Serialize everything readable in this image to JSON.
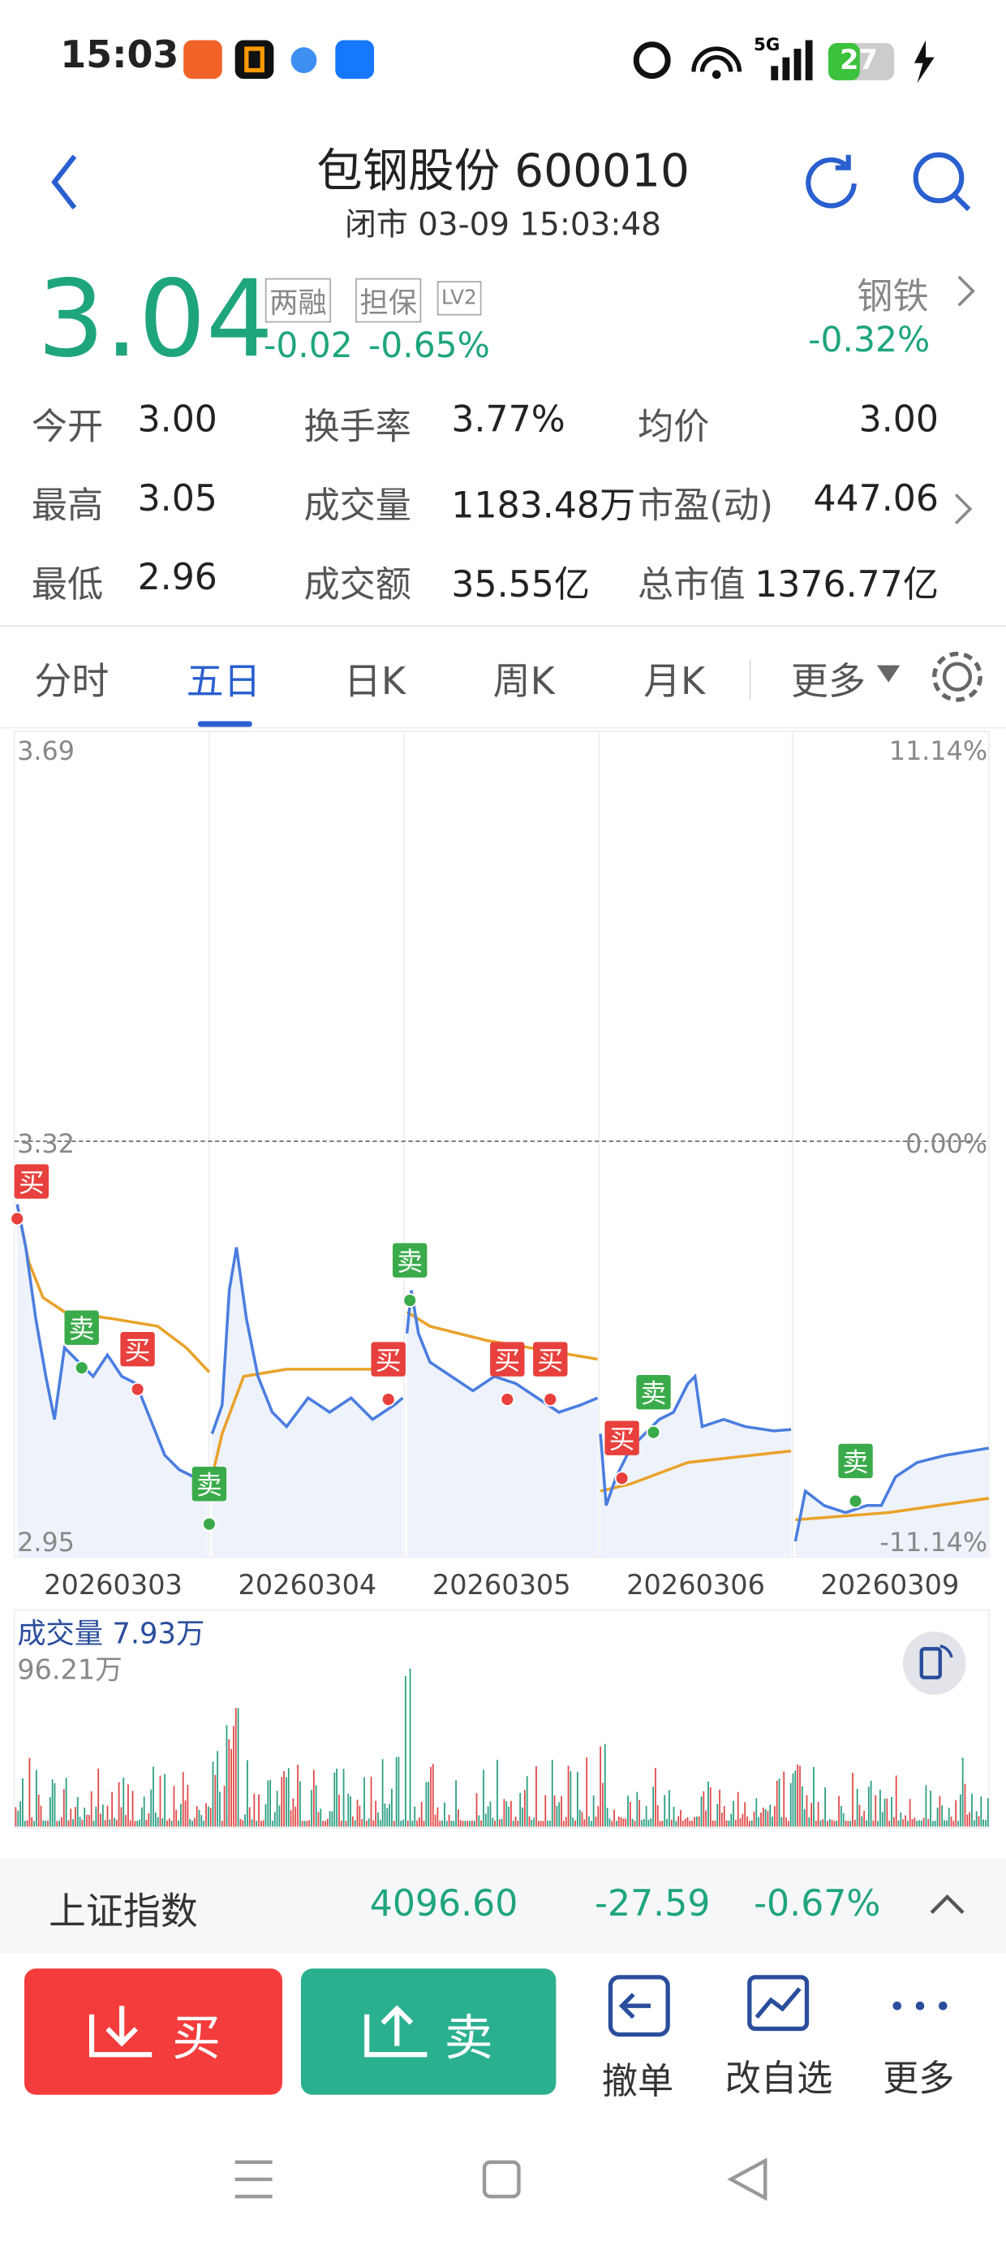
{
  "status_bar": {
    "time": "15:03",
    "network": "5G",
    "battery": "27"
  },
  "header": {
    "title": "包钢股份 600010",
    "subtitle": "闭市 03-09 15:03:48"
  },
  "quote": {
    "price": "3.04",
    "tags": [
      "两融",
      "担保",
      "LV2"
    ],
    "change": "-0.02",
    "change_pct": "-0.65%",
    "sector": "钢铁",
    "sector_change": "-0.32%"
  },
  "stats": [
    [
      "今开",
      "3.00"
    ],
    [
      "换手率",
      "3.77%"
    ],
    [
      "均价",
      "3.00"
    ],
    [
      "最高",
      "3.05"
    ],
    [
      "成交量",
      "1183.48万"
    ],
    [
      "市盈(动)",
      "447.06"
    ],
    [
      "最低",
      "2.96"
    ],
    [
      "成交额",
      "35.55亿"
    ],
    [
      "总市值",
      "1376.77亿"
    ]
  ],
  "tabs": [
    "分时",
    "五日",
    "日K",
    "周K",
    "月K",
    "更多"
  ],
  "chart": {
    "price_labels": [
      "3.69",
      "3.32",
      "2.95"
    ],
    "pct_labels": [
      "11.14%",
      "0.00%",
      "-11.14%"
    ],
    "dates": [
      "20260303",
      "20260304",
      "20260305",
      "20260306",
      "20260309"
    ],
    "markers": [
      "买",
      "卖",
      "买",
      "卖",
      "卖",
      "买",
      "买",
      "买",
      "卖",
      "买",
      "卖"
    ]
  },
  "volume": {
    "label": "成交量 7.93万",
    "max": "96.21万"
  },
  "index": {
    "name": "上证指数",
    "value": "4096.60",
    "change": "-27.59",
    "change_pct": "-0.67%"
  },
  "actions": {
    "buy": "买",
    "sell": "卖",
    "items": [
      "撤单",
      "改自选",
      "更多"
    ]
  }
}
